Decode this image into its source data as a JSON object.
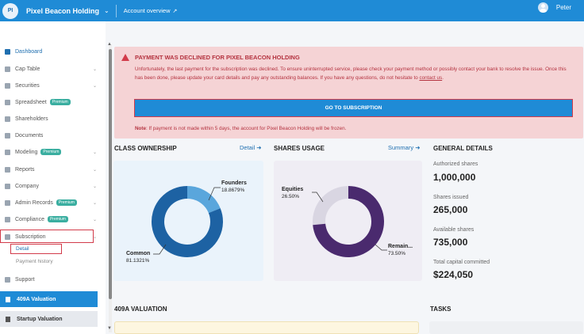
{
  "topbar": {
    "org_initials": "PI",
    "org_name": "Pixel Beacon Holding",
    "account_overview": "Account overview",
    "user_name": "Peter"
  },
  "sidebar": {
    "items": [
      {
        "label": "Dashboard",
        "premium": false,
        "caret": false
      },
      {
        "label": "Cap Table",
        "premium": false,
        "caret": true
      },
      {
        "label": "Securities",
        "premium": false,
        "caret": true
      },
      {
        "label": "Spreadsheet",
        "premium": true,
        "caret": false
      },
      {
        "label": "Shareholders",
        "premium": false,
        "caret": false
      },
      {
        "label": "Documents",
        "premium": false,
        "caret": false
      },
      {
        "label": "Modeling",
        "premium": true,
        "caret": true
      },
      {
        "label": "Reports",
        "premium": false,
        "caret": true
      },
      {
        "label": "Company",
        "premium": false,
        "caret": true
      },
      {
        "label": "Admin Records",
        "premium": true,
        "caret": true
      },
      {
        "label": "Compliance",
        "premium": true,
        "caret": true
      },
      {
        "label": "Subscription",
        "premium": false,
        "caret": true
      }
    ],
    "premium_label": "Premium",
    "sub_items": [
      "Detail",
      "Payment history"
    ],
    "support": "Support",
    "valuation_409a": "409A Valuation",
    "startup_valuation": "Startup Valuation"
  },
  "alert": {
    "title": "PAYMENT WAS DECLINED FOR PIXEL BEACON HOLDING",
    "body": "Unfortunately, the last payment for the subscription was declined. To ensure uninterrupted service, please check your payment method or possibly contact your bank to resolve the issue. Once this has been done, please update your card details and pay any outstanding balances. If you have any questions, do not hesitate to",
    "contact_link": "contact us",
    "button": "GO TO SUBSCRIPTION",
    "note_label": "Note",
    "note": ": If payment is not made within 5 days, the account for Pixel Beacon Holding will be frozen."
  },
  "class_ownership": {
    "title": "CLASS OWNERSHIP",
    "link": "Detail",
    "segments": [
      {
        "name": "Founders",
        "value": "18.8679%",
        "fraction": 0.188679,
        "color": "#5aa6dc"
      },
      {
        "name": "Common",
        "value": "81.1321%",
        "fraction": 0.811321,
        "color": "#1d62a3"
      }
    ]
  },
  "shares_usage": {
    "title": "SHARES USAGE",
    "link": "Summary",
    "segments": [
      {
        "name": "Equities",
        "value": "26.50%",
        "fraction": 0.265,
        "color": "#d9d6e2"
      },
      {
        "name": "Remain...",
        "value": "73.50%",
        "fraction": 0.735,
        "color": "#4a2a6e"
      }
    ]
  },
  "general_details": {
    "title": "GENERAL DETAILS",
    "rows": [
      {
        "label": "Authorized shares",
        "value": "1,000,000"
      },
      {
        "label": "Shares issued",
        "value": "265,000"
      },
      {
        "label": "Available shares",
        "value": "735,000"
      },
      {
        "label": "Total capital committed",
        "value": "$224,050"
      }
    ]
  },
  "sections": {
    "valuation": "409A VALUATION",
    "tasks": "TASKS"
  },
  "colors": {
    "topbar": "#1f8bd6",
    "alert_bg": "#f5d3d5",
    "alert_text": "#b4323f",
    "active_nav": "#1f8bd6",
    "highlight": "#d23b4a"
  }
}
